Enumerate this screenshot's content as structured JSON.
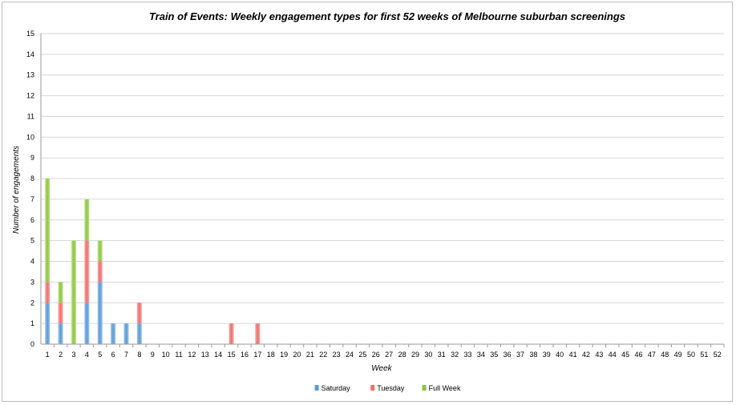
{
  "chart_data": {
    "type": "bar",
    "stacked": true,
    "title": "Train of Events: Weekly engagement types for first 52 weeks of Melbourne suburban screenings",
    "xlabel": "Week",
    "ylabel": "Number of engagements",
    "ylim": [
      0,
      15
    ],
    "ytick_step": 1,
    "grid": true,
    "legend_position": "bottom-center",
    "categories": [
      "1",
      "2",
      "3",
      "4",
      "5",
      "6",
      "7",
      "8",
      "9",
      "10",
      "11",
      "12",
      "13",
      "14",
      "15",
      "16",
      "17",
      "18",
      "19",
      "20",
      "21",
      "22",
      "23",
      "24",
      "25",
      "26",
      "27",
      "28",
      "29",
      "30",
      "31",
      "32",
      "33",
      "34",
      "35",
      "36",
      "37",
      "38",
      "39",
      "40",
      "41",
      "42",
      "43",
      "44",
      "45",
      "46",
      "47",
      "48",
      "49",
      "50",
      "51",
      "52"
    ],
    "series": [
      {
        "name": "Saturday",
        "color": "#5b9bd5",
        "values": [
          2,
          1,
          0,
          2,
          3,
          1,
          1,
          1,
          0,
          0,
          0,
          0,
          0,
          0,
          0,
          0,
          0,
          0,
          0,
          0,
          0,
          0,
          0,
          0,
          0,
          0,
          0,
          0,
          0,
          0,
          0,
          0,
          0,
          0,
          0,
          0,
          0,
          0,
          0,
          0,
          0,
          0,
          0,
          0,
          0,
          0,
          0,
          0,
          0,
          0,
          0,
          0
        ]
      },
      {
        "name": "Tuesday",
        "color": "#ef6f6c",
        "values": [
          1,
          1,
          0,
          3,
          1,
          0,
          0,
          1,
          0,
          0,
          0,
          0,
          0,
          0,
          1,
          0,
          1,
          0,
          0,
          0,
          0,
          0,
          0,
          0,
          0,
          0,
          0,
          0,
          0,
          0,
          0,
          0,
          0,
          0,
          0,
          0,
          0,
          0,
          0,
          0,
          0,
          0,
          0,
          0,
          0,
          0,
          0,
          0,
          0,
          0,
          0,
          0
        ]
      },
      {
        "name": "Full Week",
        "color": "#8cc63f",
        "values": [
          5,
          1,
          5,
          2,
          1,
          0,
          0,
          0,
          0,
          0,
          0,
          0,
          0,
          0,
          0,
          0,
          0,
          0,
          0,
          0,
          0,
          0,
          0,
          0,
          0,
          0,
          0,
          0,
          0,
          0,
          0,
          0,
          0,
          0,
          0,
          0,
          0,
          0,
          0,
          0,
          0,
          0,
          0,
          0,
          0,
          0,
          0,
          0,
          0,
          0,
          0,
          0
        ]
      }
    ]
  }
}
